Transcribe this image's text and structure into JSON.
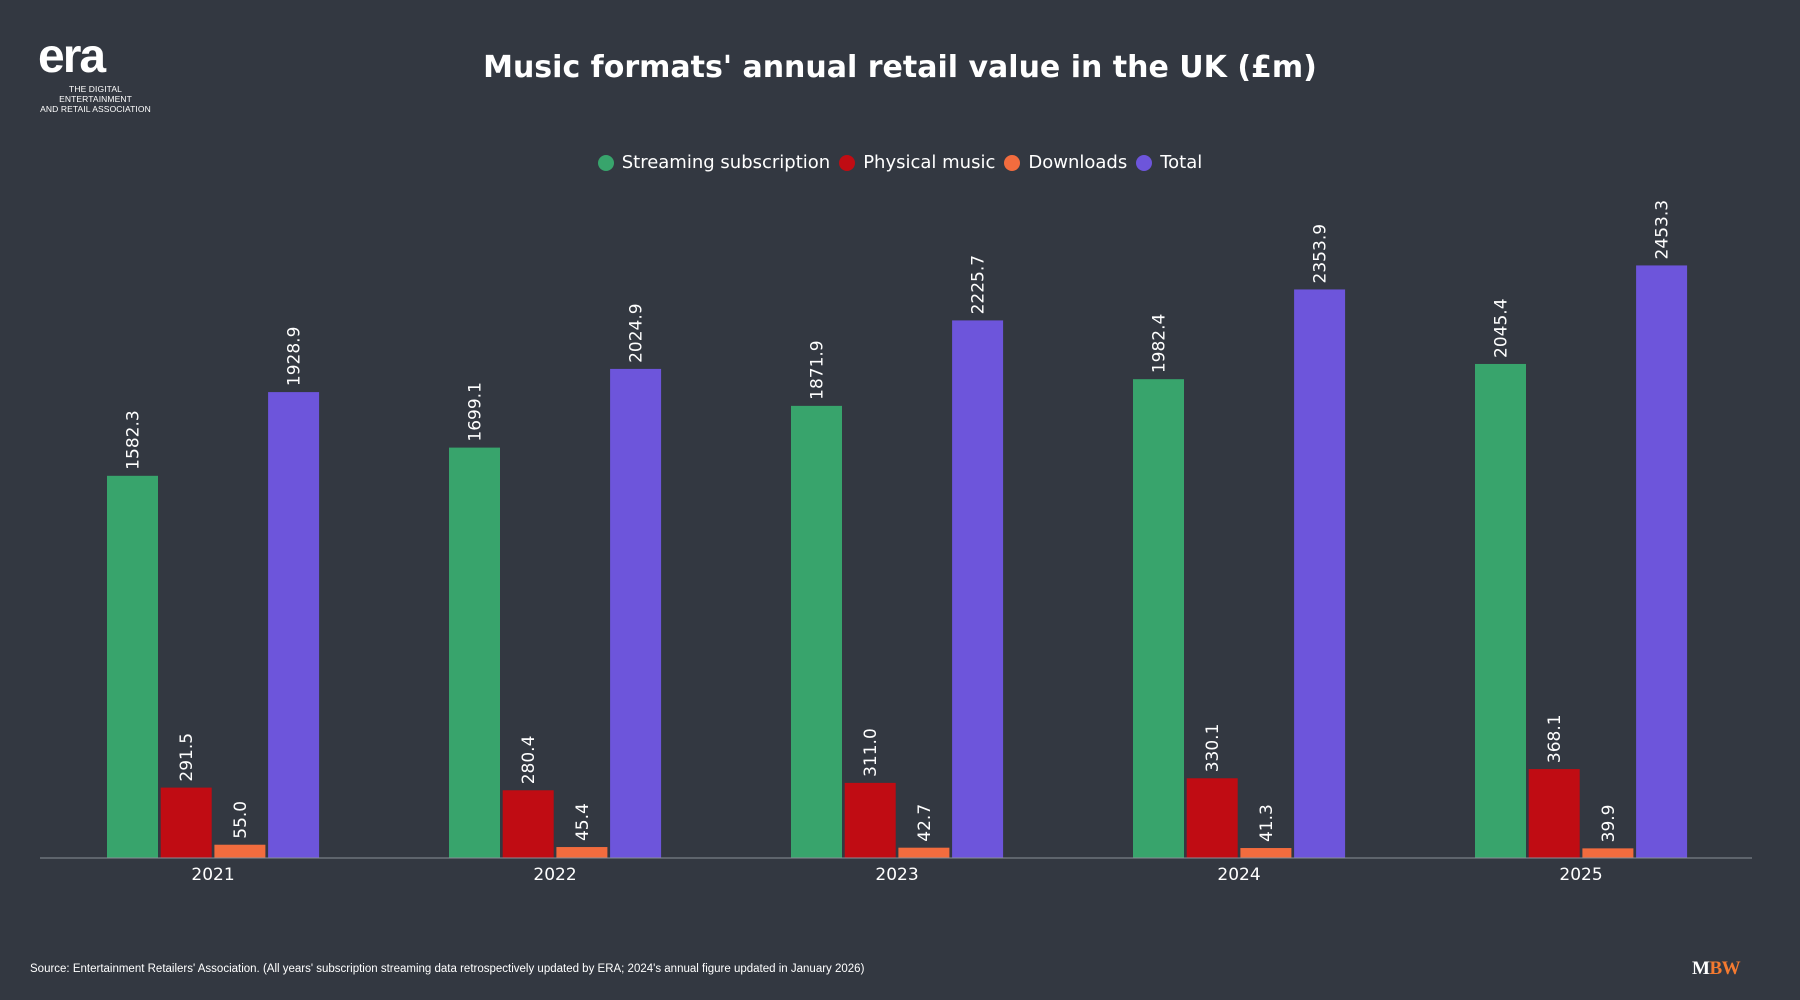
{
  "logo": {
    "name": "era",
    "tagline_line1": "THE DIGITAL ENTERTAINMENT",
    "tagline_line2": "AND RETAIL ASSOCIATION"
  },
  "brand": {
    "mbw_m": "M",
    "mbw_bw": "BW",
    "mbw_accent": "#f47a30"
  },
  "source": "Source: Entertainment Retailers' Association. (All years' subscription streaming data retrospectively updated by ERA; 2024's annual figure updated in January 2026)",
  "chart_data": {
    "type": "bar",
    "title": "Music formats' annual retail value in the UK (£m)",
    "xlabel": "",
    "ylabel": "",
    "ylim": [
      0,
      2600
    ],
    "grid": false,
    "legend_position": "top-center",
    "categories": [
      "2021",
      "2022",
      "2023",
      "2024",
      "2025"
    ],
    "series": [
      {
        "name": "Streaming subscription",
        "color": "#38a46c",
        "values": [
          1582.3,
          1699.1,
          1871.9,
          1982.4,
          2045.4
        ]
      },
      {
        "name": "Physical music",
        "color": "#c00c13",
        "values": [
          291.5,
          280.4,
          311.0,
          330.1,
          368.1
        ]
      },
      {
        "name": "Downloads",
        "color": "#f26c3e",
        "values": [
          55.0,
          45.4,
          42.7,
          41.3,
          39.9
        ]
      },
      {
        "name": "Total",
        "color": "#6d55db",
        "values": [
          1928.9,
          2024.9,
          2225.7,
          2353.9,
          2453.3
        ]
      }
    ]
  }
}
